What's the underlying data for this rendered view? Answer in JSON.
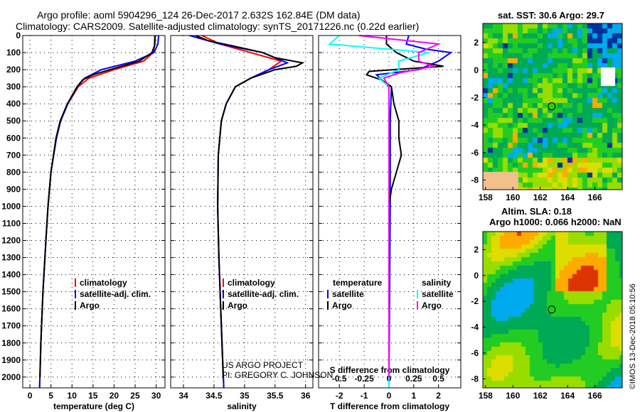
{
  "title_line1": "Argo profile: aoml 5904296_124 26-Dec-2017 2.632S 162.84E (DM data)",
  "title_line2": "Climatology: CARS2009. Satellite-adjusted climatology: synTS_20171226.nc (0.22d earlier)",
  "credit_line1": "US ARGO PROJECT",
  "credit_line2": "PI: GREGORY C. JOHNSON",
  "side_label": "©IMOS 13-Dec-2018 05:10:56",
  "colors": {
    "climatology": "#ff0000",
    "satellite": "#0000ff",
    "argo": "#000000",
    "sal_satellite": "#00ffff",
    "sal_argo": "#ff00ff"
  },
  "chart_data": [
    {
      "type": "line",
      "xlabel": "temperature (deg C)",
      "ylabel": "depth",
      "xlim": [
        -1.7,
        32.1
      ],
      "ylim": [
        2063,
        0
      ],
      "xticks": [
        0,
        5,
        10,
        15,
        20,
        25,
        30
      ],
      "yticks": [
        0,
        100,
        200,
        300,
        400,
        500,
        600,
        700,
        800,
        900,
        1000,
        1100,
        1200,
        1300,
        1400,
        1500,
        1600,
        1700,
        1800,
        1900,
        2000
      ],
      "legend": [
        "climatology",
        "satellite-adj. clim.",
        "Argo"
      ],
      "series": [
        {
          "name": "climatology",
          "color": "#ff0000",
          "points": [
            [
              29.8,
              0
            ],
            [
              29.7,
              50
            ],
            [
              29.3,
              100
            ],
            [
              27,
              150
            ],
            [
              20,
              200
            ],
            [
              14,
              250
            ],
            [
              11.5,
              300
            ],
            [
              9,
              400
            ],
            [
              7.3,
              500
            ],
            [
              6.3,
              600
            ],
            [
              5,
              800
            ],
            [
              4.3,
              1000
            ],
            [
              3.8,
              1200
            ],
            [
              3.1,
              1500
            ],
            [
              2.6,
              1800
            ],
            [
              2.3,
              2063
            ]
          ]
        },
        {
          "name": "satellite-adj. clim.",
          "color": "#0000ff",
          "points": [
            [
              30.6,
              0
            ],
            [
              30.4,
              50
            ],
            [
              29.5,
              100
            ],
            [
              25,
              150
            ],
            [
              17,
              200
            ],
            [
              13,
              250
            ],
            [
              11.3,
              300
            ],
            [
              9,
              400
            ],
            [
              7.3,
              500
            ],
            [
              6.3,
              600
            ],
            [
              5,
              800
            ],
            [
              4.3,
              1000
            ],
            [
              3.8,
              1200
            ],
            [
              3.1,
              1500
            ],
            [
              2.6,
              1800
            ],
            [
              2.3,
              2063
            ]
          ]
        },
        {
          "name": "Argo",
          "color": "#000000",
          "points": [
            [
              29.7,
              0
            ],
            [
              29.6,
              60
            ],
            [
              29,
              100
            ],
            [
              26,
              150
            ],
            [
              19,
              200
            ],
            [
              15,
              230
            ],
            [
              12.5,
              260
            ],
            [
              11.2,
              300
            ],
            [
              8.9,
              400
            ],
            [
              7.2,
              500
            ],
            [
              6.2,
              600
            ],
            [
              5,
              800
            ],
            [
              4.3,
              1000
            ],
            [
              3.8,
              1200
            ],
            [
              3.1,
              1500
            ],
            [
              2.6,
              1800
            ],
            [
              2.4,
              2000
            ]
          ]
        }
      ]
    },
    {
      "type": "line",
      "xlabel": "salinity",
      "ylabel": "depth",
      "xlim": [
        33.79,
        36.12
      ],
      "ylim": [
        2063,
        0
      ],
      "xticks": [
        34,
        34.5,
        35,
        35.5,
        36
      ],
      "legend": [
        "climatology",
        "satellite-adj. clim.",
        "Argo"
      ],
      "series": [
        {
          "name": "climatology",
          "color": "#ff0000",
          "points": [
            [
              34.3,
              0
            ],
            [
              34.6,
              50
            ],
            [
              35.1,
              100
            ],
            [
              35.6,
              150
            ],
            [
              35.4,
              200
            ],
            [
              35.1,
              250
            ],
            [
              34.85,
              300
            ],
            [
              34.7,
              400
            ],
            [
              34.62,
              500
            ],
            [
              34.57,
              700
            ],
            [
              34.56,
              1000
            ],
            [
              34.58,
              1300
            ],
            [
              34.61,
              1600
            ],
            [
              34.66,
              2063
            ]
          ]
        },
        {
          "name": "satellite-adj. clim.",
          "color": "#0000ff",
          "points": [
            [
              34.1,
              0
            ],
            [
              34.6,
              50
            ],
            [
              35.3,
              100
            ],
            [
              35.7,
              160
            ],
            [
              35.4,
              200
            ],
            [
              35.1,
              250
            ],
            [
              34.85,
              300
            ],
            [
              34.7,
              400
            ],
            [
              34.62,
              500
            ],
            [
              34.57,
              700
            ],
            [
              34.56,
              1000
            ],
            [
              34.58,
              1300
            ],
            [
              34.61,
              1600
            ],
            [
              34.66,
              2063
            ]
          ]
        },
        {
          "name": "Argo",
          "color": "#000000",
          "points": [
            [
              34.2,
              0
            ],
            [
              34.4,
              30
            ],
            [
              34.8,
              60
            ],
            [
              35.3,
              100
            ],
            [
              35.5,
              130
            ],
            [
              35.95,
              160
            ],
            [
              35.85,
              180
            ],
            [
              35.5,
              200
            ],
            [
              35.1,
              250
            ],
            [
              34.85,
              300
            ],
            [
              34.7,
              400
            ],
            [
              34.62,
              500
            ],
            [
              34.57,
              700
            ],
            [
              34.56,
              1000
            ],
            [
              34.58,
              1300
            ],
            [
              34.61,
              1600
            ],
            [
              34.65,
              2000
            ]
          ]
        }
      ]
    },
    {
      "type": "line",
      "xlabel": "T difference from climatology",
      "xlabel2": "S difference from climatology",
      "xlim": [
        -2.84,
        2.9
      ],
      "xlim2": [
        -0.71,
        0.725
      ],
      "ylim": [
        2063,
        0
      ],
      "xticks": [
        -2,
        -1,
        0,
        1,
        2
      ],
      "xticks2": [
        -0.5,
        -0.25,
        0,
        0.25,
        0.5
      ],
      "legend_t_title": "temperature",
      "legend_s_title": "salinity",
      "legend_t": [
        "satellite",
        "Argo"
      ],
      "legend_s": [
        "satellite",
        "Argo"
      ],
      "series": [
        {
          "name": "T satellite",
          "axis": "T",
          "color": "#0000ff",
          "points": [
            [
              0.8,
              0
            ],
            [
              0.7,
              50
            ],
            [
              1.5,
              80
            ],
            [
              2.5,
              100
            ],
            [
              2,
              150
            ],
            [
              1.2,
              200
            ],
            [
              -0.5,
              230
            ],
            [
              -0.3,
              260
            ],
            [
              0.1,
              300
            ],
            [
              0.05,
              500
            ],
            [
              0.05,
              1000
            ],
            [
              0,
              2063
            ]
          ]
        },
        {
          "name": "T Argo",
          "axis": "T",
          "color": "#000000",
          "points": [
            [
              -0.1,
              0
            ],
            [
              -0.1,
              50
            ],
            [
              0.3,
              100
            ],
            [
              1,
              150
            ],
            [
              2.2,
              180
            ],
            [
              -0.8,
              210
            ],
            [
              -0.9,
              230
            ],
            [
              -0.3,
              260
            ],
            [
              0.1,
              300
            ],
            [
              0.2,
              400
            ],
            [
              0.4,
              500
            ],
            [
              0.4,
              600
            ],
            [
              0.5,
              700
            ],
            [
              0.3,
              800
            ],
            [
              0.1,
              900
            ],
            [
              0,
              1000
            ],
            [
              0,
              2000
            ]
          ]
        },
        {
          "name": "S satellite",
          "axis": "S",
          "color": "#00ffff",
          "points": [
            [
              -0.5,
              0
            ],
            [
              -0.6,
              50
            ],
            [
              0.4,
              100
            ],
            [
              0.1,
              150
            ],
            [
              0.1,
              200
            ],
            [
              -0.1,
              250
            ],
            [
              0,
              300
            ],
            [
              0,
              2063
            ]
          ]
        },
        {
          "name": "S Argo",
          "axis": "S",
          "color": "#ff00ff",
          "points": [
            [
              -0.3,
              0
            ],
            [
              0.5,
              50
            ],
            [
              0.3,
              100
            ],
            [
              0.3,
              150
            ],
            [
              0.45,
              180
            ],
            [
              0.1,
              220
            ],
            [
              -0.05,
              250
            ],
            [
              0,
              300
            ],
            [
              0,
              2000
            ]
          ]
        }
      ]
    },
    {
      "type": "heatmap",
      "title": "sat. SST: 30.6 Argo: 29.7",
      "xticks": [
        158,
        160,
        162,
        164,
        166
      ],
      "yticks": [
        2,
        0,
        -2,
        -4,
        -6,
        -8
      ],
      "xlim": [
        157.8,
        168
      ],
      "ylim": [
        -8.7,
        3.4
      ],
      "marker": [
        162.84,
        -2.632
      ]
    },
    {
      "type": "heatmap",
      "title": "Altim. SLA: 0.18",
      "subtitle": "Argo h1000: 0.066 h2000: NaN",
      "xticks": [
        158,
        160,
        162,
        164,
        166
      ],
      "yticks": [
        2,
        0,
        -2,
        -4,
        -6,
        -8
      ],
      "xlim": [
        157.8,
        168
      ],
      "ylim": [
        -8.7,
        3.4
      ],
      "marker": [
        162.84,
        -2.632
      ]
    }
  ]
}
